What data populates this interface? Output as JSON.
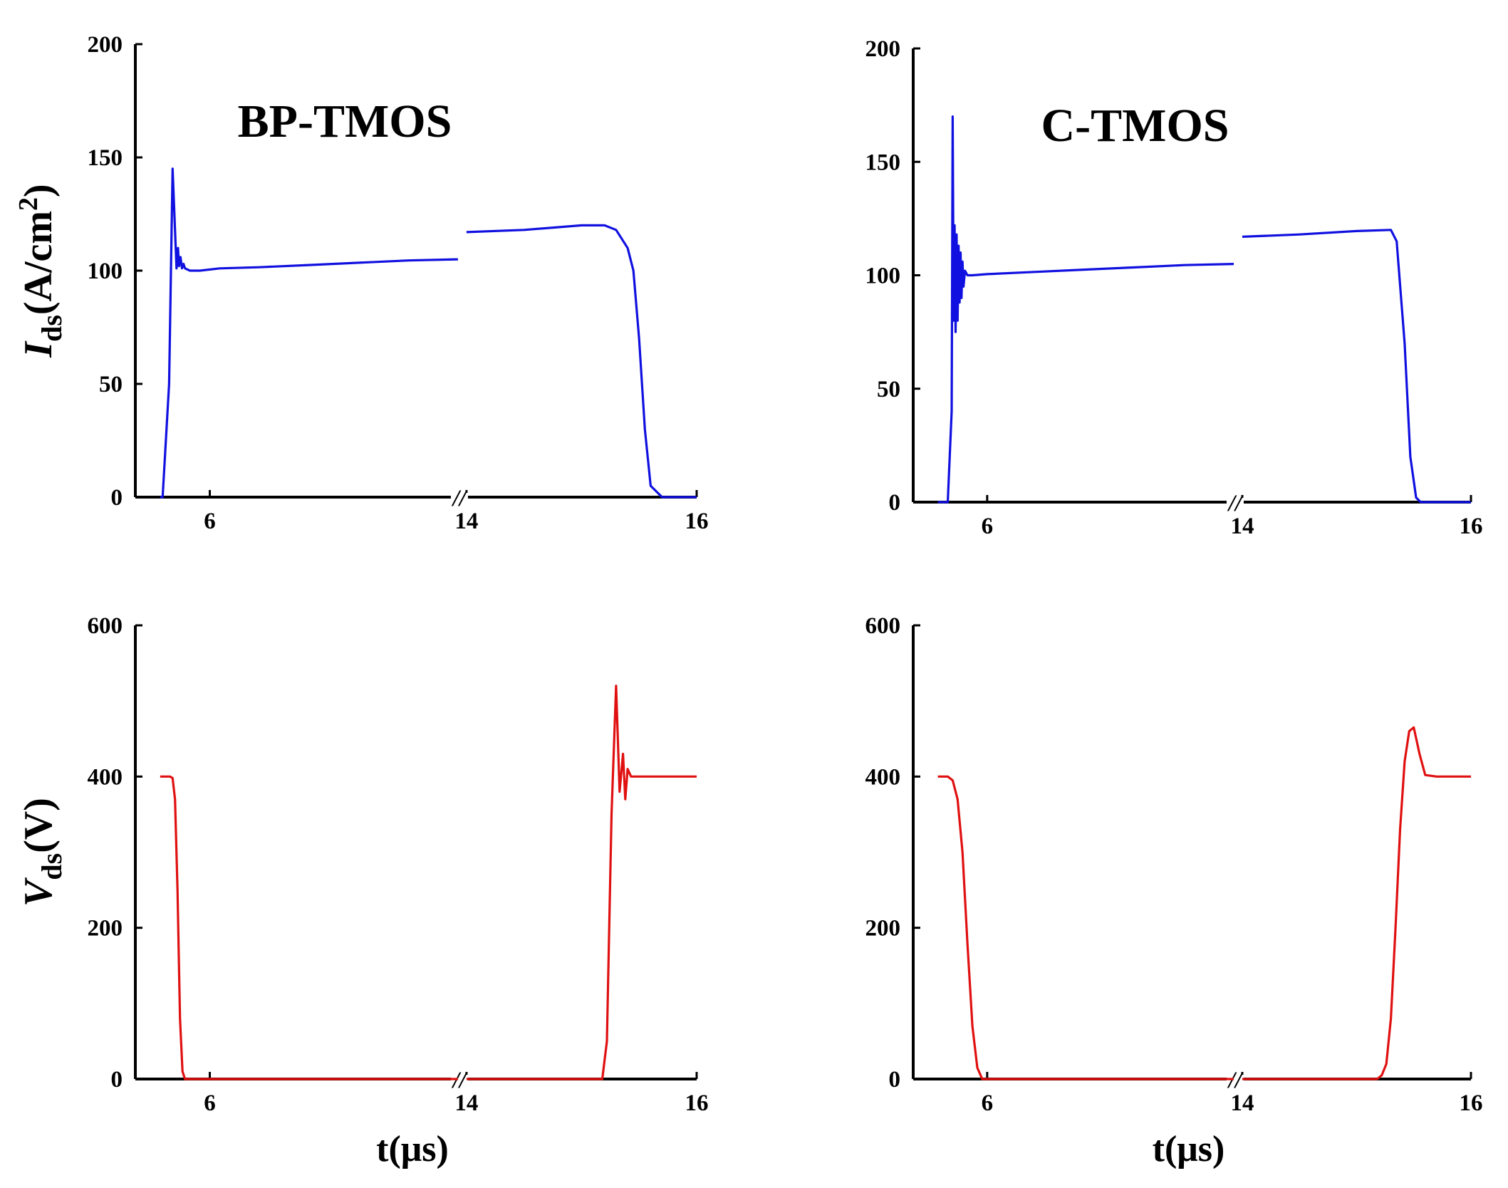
{
  "chart_data": [
    {
      "id": "ids-bp",
      "type": "line",
      "title": "BP-TMOS",
      "ylabel_main": "I",
      "ylabel_sub": "ds",
      "ylabel_unit_pre": "(A/cm",
      "ylabel_unit_sup": "2",
      "ylabel_unit_post": ")",
      "ylim": [
        0,
        200
      ],
      "yticks": [
        "0",
        "50",
        "100",
        "150",
        "200"
      ],
      "xticks": [
        "6",
        "14",
        "16"
      ],
      "xbreak_label": "//",
      "series_color": "#1010e0",
      "segments": [
        {
          "x": [
            5.0,
            5.05,
            5.18,
            5.25,
            5.3,
            5.33,
            5.36,
            5.38,
            5.41,
            5.44,
            5.47,
            5.5,
            5.6,
            5.8,
            6.2,
            7.0,
            8.0,
            9.0,
            10.0,
            11.0
          ],
          "y": [
            0,
            0,
            50,
            145,
            118,
            101,
            110,
            102,
            106,
            101,
            103,
            101,
            100,
            100,
            101,
            101.5,
            102.5,
            103.5,
            104.5,
            105
          ]
        },
        {
          "x": [
            14.0,
            14.5,
            15.0,
            15.2,
            15.3,
            15.4,
            15.45,
            15.5,
            15.55,
            15.6,
            15.7,
            15.8,
            16.0
          ],
          "y": [
            117,
            118,
            120,
            120,
            118,
            110,
            100,
            70,
            30,
            5,
            0,
            0,
            0
          ]
        }
      ]
    },
    {
      "id": "ids-c",
      "type": "line",
      "title": "C-TMOS",
      "ylim": [
        0,
        200
      ],
      "yticks": [
        "0",
        "50",
        "100",
        "150",
        "200"
      ],
      "xticks": [
        "6",
        "14",
        "16"
      ],
      "xbreak_label": "//",
      "series_color": "#1010e0",
      "segments": [
        {
          "x": [
            5.0,
            5.2,
            5.28,
            5.3,
            5.32,
            5.34,
            5.36,
            5.38,
            5.4,
            5.42,
            5.44,
            5.46,
            5.48,
            5.5,
            5.52,
            5.55,
            5.6,
            5.7,
            6.0,
            7.0,
            8.0,
            9.0,
            10.0,
            11.0
          ],
          "y": [
            0,
            0,
            40,
            170,
            80,
            122,
            75,
            118,
            80,
            113,
            88,
            110,
            90,
            106,
            95,
            102,
            100,
            100,
            100.5,
            101.5,
            102.5,
            103.5,
            104.5,
            105
          ]
        },
        {
          "x": [
            14.0,
            14.5,
            15.0,
            15.3,
            15.35,
            15.42,
            15.47,
            15.52,
            15.56,
            16.0
          ],
          "y": [
            117,
            118,
            119.5,
            120,
            115,
            70,
            20,
            2,
            0,
            0
          ]
        }
      ]
    },
    {
      "id": "vds-bp",
      "type": "line",
      "ylabel_main": "V",
      "ylabel_sub": "ds",
      "ylabel_unit_pre": "(V)",
      "xlabel": "t(μs)",
      "ylim": [
        0,
        600
      ],
      "yticks": [
        "0",
        "200",
        "400",
        "600"
      ],
      "xticks": [
        "6",
        "14",
        "16"
      ],
      "xbreak_label": "//",
      "series_color": "#e01010",
      "segments": [
        {
          "x": [
            5.0,
            5.1,
            5.2,
            5.25,
            5.3,
            5.35,
            5.4,
            5.45,
            5.5,
            5.6,
            6.0,
            8.0,
            10.0,
            11.0
          ],
          "y": [
            400,
            400,
            400,
            398,
            370,
            250,
            80,
            10,
            0,
            0,
            0,
            0,
            0,
            0
          ]
        },
        {
          "x": [
            14.0,
            14.5,
            15.0,
            15.18,
            15.22,
            15.26,
            15.3,
            15.33,
            15.36,
            15.38,
            15.4,
            15.43,
            15.46,
            15.5,
            15.6,
            16.0
          ],
          "y": [
            0,
            0,
            0,
            0,
            50,
            350,
            520,
            380,
            430,
            370,
            410,
            400,
            400,
            400,
            400,
            400
          ]
        }
      ]
    },
    {
      "id": "vds-c",
      "type": "line",
      "xlabel": "t(μs)",
      "ylim": [
        0,
        600
      ],
      "yticks": [
        "0",
        "200",
        "400",
        "600"
      ],
      "xticks": [
        "6",
        "14",
        "16"
      ],
      "xbreak_label": "//",
      "series_color": "#e01010",
      "segments": [
        {
          "x": [
            5.0,
            5.1,
            5.2,
            5.3,
            5.4,
            5.5,
            5.6,
            5.7,
            5.8,
            5.9,
            6.0,
            8.0,
            10.0,
            11.0
          ],
          "y": [
            400,
            400,
            400,
            395,
            370,
            300,
            180,
            70,
            15,
            0,
            0,
            0,
            0,
            0
          ]
        },
        {
          "x": [
            14.0,
            14.5,
            15.0,
            15.18,
            15.22,
            15.26,
            15.3,
            15.34,
            15.38,
            15.42,
            15.46,
            15.5,
            15.55,
            15.6,
            15.7,
            16.0
          ],
          "y": [
            0,
            0,
            0,
            0,
            5,
            20,
            80,
            200,
            330,
            420,
            460,
            465,
            430,
            402,
            400,
            400
          ]
        }
      ]
    }
  ]
}
